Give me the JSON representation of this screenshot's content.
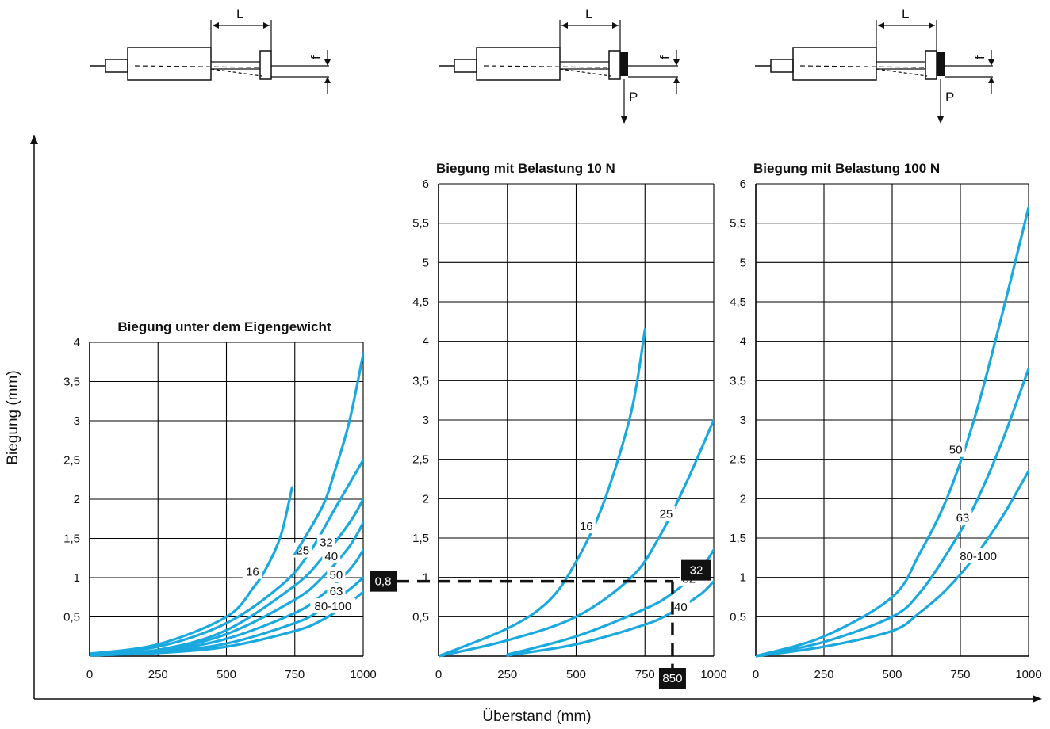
{
  "axes": {
    "ylabel": "Biegung (mm)",
    "xlabel": "Überstand (mm)"
  },
  "diagrams": [
    {
      "length_label": "L",
      "deflection_label": "f",
      "load_label": ""
    },
    {
      "length_label": "L",
      "deflection_label": "f",
      "load_label": "P"
    },
    {
      "length_label": "L",
      "deflection_label": "f",
      "load_label": "P"
    }
  ],
  "colors": {
    "curve": "#1aa9df",
    "grid": "#000000",
    "highlight_box": "#111111"
  },
  "example": {
    "y_value": 0.8,
    "y_label": "0,8",
    "x_value": 850,
    "x_label": "850",
    "series_label": "32"
  },
  "chart_data": [
    {
      "type": "line",
      "title": "Biegung unter dem Eigengewicht",
      "xlabel": "Überstand (mm)",
      "ylabel": "Biegung (mm)",
      "xlim": [
        0,
        1000
      ],
      "ylim": [
        0,
        4
      ],
      "x_ticks": [
        0,
        250,
        500,
        750,
        1000
      ],
      "x_tick_labels": [
        "0",
        "250",
        "500",
        "750",
        "1000"
      ],
      "y_ticks": [
        0.5,
        1,
        1.5,
        2,
        2.5,
        3,
        3.5,
        4
      ],
      "y_tick_labels": [
        "0,5",
        "1",
        "1,5",
        "2",
        "2,5",
        "3",
        "3,5",
        "4"
      ],
      "grid": true,
      "series": [
        {
          "name": "16",
          "x": [
            0,
            250,
            500,
            600,
            650,
            700,
            740
          ],
          "y": [
            0.03,
            0.15,
            0.5,
            0.88,
            1.15,
            1.55,
            2.15
          ]
        },
        {
          "name": "25",
          "x": [
            0,
            250,
            500,
            700,
            800,
            900,
            1000
          ],
          "y": [
            0.03,
            0.12,
            0.42,
            0.9,
            1.3,
            1.9,
            2.5
          ]
        },
        {
          "name": "32",
          "x": [
            0,
            250,
            500,
            750,
            850,
            950,
            1000
          ],
          "y": [
            0.02,
            0.08,
            0.33,
            0.9,
            1.25,
            1.7,
            2.0
          ]
        },
        {
          "name": "40",
          "x": [
            0,
            250,
            500,
            750,
            850,
            950,
            1000
          ],
          "y": [
            0.02,
            0.07,
            0.28,
            0.72,
            1.0,
            1.4,
            1.7
          ]
        },
        {
          "name": "50",
          "x": [
            0,
            250,
            500,
            750,
            850,
            950,
            1000
          ],
          "y": [
            0.02,
            0.06,
            0.22,
            0.55,
            0.78,
            1.1,
            1.35
          ]
        },
        {
          "name": "63",
          "x": [
            0,
            250,
            500,
            750,
            850,
            950,
            1000
          ],
          "y": [
            0.01,
            0.05,
            0.16,
            0.42,
            0.6,
            0.85,
            1.0
          ]
        },
        {
          "name": "80-100",
          "x": [
            0,
            250,
            500,
            750,
            850,
            950,
            1000
          ],
          "y": [
            0.01,
            0.04,
            0.12,
            0.32,
            0.46,
            0.68,
            0.82
          ]
        },
        {
          "name": "",
          "x": [
            750,
            850,
            900,
            950,
            1000
          ],
          "y": [
            1.3,
            1.9,
            2.4,
            3.0,
            3.85
          ]
        }
      ]
    },
    {
      "type": "line",
      "title": "Biegung mit Belastung 10 N",
      "xlabel": "Überstand (mm)",
      "ylabel": "Biegung (mm)",
      "xlim": [
        0,
        1000
      ],
      "ylim": [
        0,
        6
      ],
      "x_ticks": [
        0,
        250,
        500,
        750,
        1000
      ],
      "x_tick_labels": [
        "0",
        "250",
        "500",
        "750",
        "1000"
      ],
      "y_ticks": [
        0.5,
        1,
        1.5,
        2,
        2.5,
        3,
        3.5,
        4,
        4.5,
        5,
        5.5,
        6
      ],
      "y_tick_labels": [
        "0,5",
        "1",
        "1,5",
        "2",
        "2,5",
        "3",
        "3,5",
        "4",
        "4,5",
        "5",
        "5,5",
        "6"
      ],
      "grid": true,
      "series": [
        {
          "name": "16",
          "x": [
            0,
            250,
            400,
            500,
            600,
            700,
            750
          ],
          "y": [
            0,
            0.35,
            0.7,
            1.2,
            1.95,
            3.1,
            4.15
          ]
        },
        {
          "name": "25",
          "x": [
            0,
            250,
            500,
            700,
            800,
            900,
            1000
          ],
          "y": [
            0,
            0.2,
            0.5,
            1.0,
            1.5,
            2.2,
            3.0
          ]
        },
        {
          "name": "32",
          "x": [
            250,
            500,
            750,
            850,
            950,
            1000
          ],
          "y": [
            0.02,
            0.25,
            0.6,
            0.8,
            1.1,
            1.35
          ]
        },
        {
          "name": "40",
          "x": [
            250,
            500,
            750,
            850,
            950,
            1000
          ],
          "y": [
            0.01,
            0.15,
            0.4,
            0.56,
            0.78,
            0.95
          ]
        }
      ]
    },
    {
      "type": "line",
      "title": "Biegung mit Belastung 100 N",
      "xlabel": "Überstand (mm)",
      "ylabel": "Biegung (mm)",
      "xlim": [
        0,
        1000
      ],
      "ylim": [
        0,
        6
      ],
      "x_ticks": [
        0,
        250,
        500,
        750,
        1000
      ],
      "x_tick_labels": [
        "0",
        "250",
        "500",
        "750",
        "1000"
      ],
      "y_ticks": [
        0.5,
        1,
        1.5,
        2,
        2.5,
        3,
        3.5,
        4,
        4.5,
        5,
        5.5,
        6
      ],
      "y_tick_labels": [
        "0,5",
        "1",
        "1,5",
        "2",
        "2,5",
        "3",
        "3,5",
        "4",
        "4,5",
        "5",
        "5,5",
        "6"
      ],
      "grid": true,
      "series": [
        {
          "name": "50",
          "x": [
            0,
            250,
            500,
            600,
            700,
            800,
            900,
            1000
          ],
          "y": [
            0,
            0.25,
            0.75,
            1.3,
            2.0,
            3.0,
            4.3,
            5.7
          ]
        },
        {
          "name": "63",
          "x": [
            0,
            250,
            500,
            600,
            700,
            800,
            900,
            1000
          ],
          "y": [
            0,
            0.18,
            0.5,
            0.8,
            1.3,
            1.9,
            2.7,
            3.65
          ]
        },
        {
          "name": "80-100",
          "x": [
            0,
            250,
            500,
            600,
            700,
            800,
            900,
            1000
          ],
          "y": [
            0,
            0.12,
            0.32,
            0.55,
            0.85,
            1.25,
            1.75,
            2.35
          ]
        }
      ]
    }
  ]
}
